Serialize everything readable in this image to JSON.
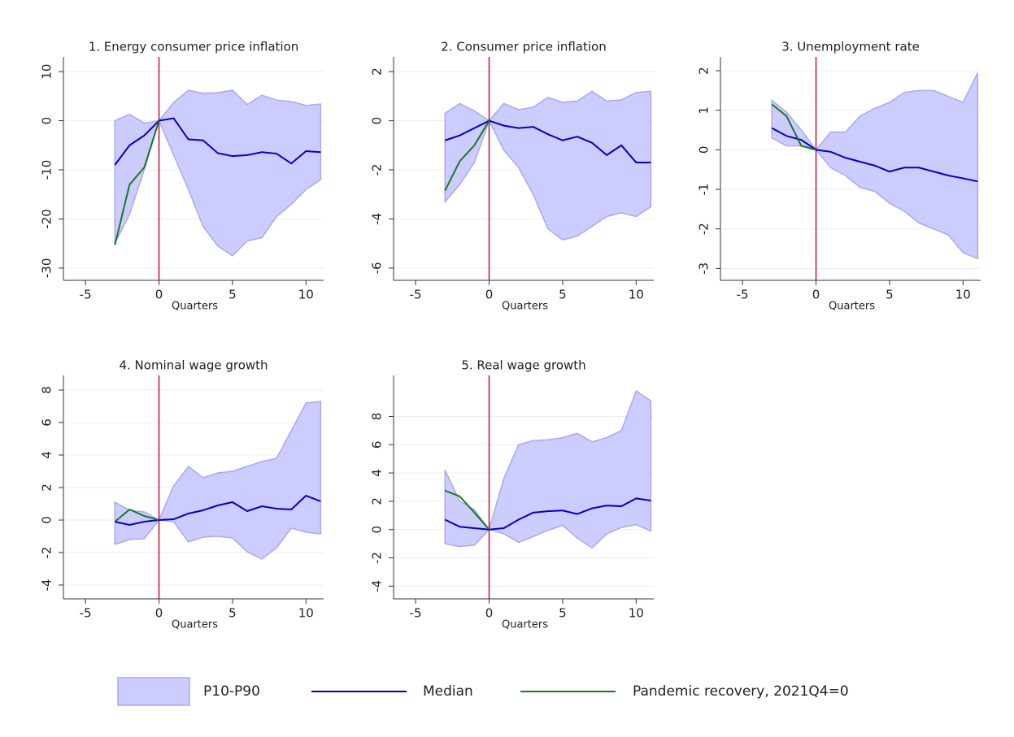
{
  "chart_data": [
    {
      "type": "line",
      "title": "1. Energy consumer price inflation",
      "xlabel": "Quarters",
      "x": [
        -3,
        -2,
        -1,
        0,
        1,
        2,
        3,
        4,
        5,
        6,
        7,
        8,
        9,
        10,
        11
      ],
      "xlim": [
        -6.5,
        11.2
      ],
      "xticks": [
        -5,
        0,
        5,
        10
      ],
      "ylim": [
        -32.5,
        13
      ],
      "yticks": [
        -30,
        -20,
        -10,
        0,
        10
      ],
      "grid": true,
      "vline": 0,
      "vline_color": "#c8103c",
      "series": [
        {
          "name": "P10-P90",
          "color": "#ccccff",
          "upper": [
            0,
            1.3,
            -0.5,
            0,
            3.7,
            6.2,
            5.6,
            5.7,
            6.2,
            3.3,
            5.2,
            4.2,
            3.9,
            3.1,
            3.4
          ],
          "lower": [
            -25,
            -19,
            -10,
            0,
            -7,
            -14,
            -21.5,
            -25.5,
            -27.5,
            -24.5,
            -23.8,
            -19.5,
            -17,
            -14,
            -12
          ]
        },
        {
          "name": "Median",
          "color": "#0000cc",
          "values": [
            -9,
            -5,
            -3,
            0,
            0.5,
            -3.8,
            -4,
            -6.6,
            -7.2,
            -7,
            -6.4,
            -6.7,
            -8.7,
            -6.2,
            -6.4
          ]
        },
        {
          "name": "Pandemic recovery, 2021Q4=0",
          "color": "#1a7a1a",
          "values": [
            -25.3,
            -13,
            -9.5,
            0,
            null,
            null,
            null,
            null,
            null,
            null,
            null,
            null,
            null,
            null,
            null
          ]
        }
      ]
    },
    {
      "type": "line",
      "title": "2. Consumer price inflation",
      "xlabel": "Quarters",
      "x": [
        -3,
        -2,
        -1,
        0,
        1,
        2,
        3,
        4,
        5,
        6,
        7,
        8,
        9,
        10,
        11
      ],
      "xlim": [
        -6.5,
        11.2
      ],
      "xticks": [
        -5,
        0,
        5,
        10
      ],
      "ylim": [
        -6.5,
        2.6
      ],
      "yticks": [
        -6,
        -4,
        -2,
        0,
        2
      ],
      "grid": true,
      "vline": 0,
      "vline_color": "#c8103c",
      "series": [
        {
          "name": "P10-P90",
          "color": "#ccccff",
          "upper": [
            0.3,
            0.7,
            0.4,
            0,
            0.7,
            0.45,
            0.55,
            0.95,
            0.75,
            0.8,
            1.2,
            0.8,
            0.85,
            1.15,
            1.2
          ],
          "lower": [
            -3.3,
            -2.6,
            -1.7,
            0,
            -1.2,
            -1.9,
            -3,
            -4.4,
            -4.85,
            -4.7,
            -4.3,
            -3.9,
            -3.75,
            -3.9,
            -3.5
          ]
        },
        {
          "name": "Median",
          "color": "#0000cc",
          "values": [
            -0.8,
            -0.6,
            -0.3,
            0,
            -0.2,
            -0.3,
            -0.25,
            -0.55,
            -0.8,
            -0.65,
            -0.9,
            -1.4,
            -1.0,
            -1.7,
            -1.7
          ]
        },
        {
          "name": "Pandemic recovery, 2021Q4=0",
          "color": "#1a7a1a",
          "values": [
            -2.85,
            -1.65,
            -1,
            0,
            null,
            null,
            null,
            null,
            null,
            null,
            null,
            null,
            null,
            null,
            null
          ]
        }
      ]
    },
    {
      "type": "line",
      "title": "3. Unemployment rate",
      "xlabel": "Quarters",
      "x": [
        -3,
        -2,
        -1,
        0,
        1,
        2,
        3,
        4,
        5,
        6,
        7,
        8,
        9,
        10,
        11
      ],
      "xlim": [
        -6.5,
        11.2
      ],
      "xticks": [
        -5,
        0,
        5,
        10
      ],
      "ylim": [
        -3.3,
        2.35
      ],
      "yticks": [
        -3,
        -2,
        -1,
        0,
        1,
        2
      ],
      "grid": true,
      "vline": 0,
      "vline_color": "#c8103c",
      "series": [
        {
          "name": "P10-P90",
          "color": "#ccccff",
          "upper": [
            1.25,
            0.95,
            0.5,
            0,
            0.45,
            0.45,
            0.85,
            1.05,
            1.2,
            1.45,
            1.5,
            1.5,
            1.35,
            1.2,
            1.95
          ],
          "lower": [
            0.3,
            0.1,
            0.1,
            0,
            -0.45,
            -0.65,
            -0.95,
            -1.05,
            -1.35,
            -1.55,
            -1.85,
            -2.0,
            -2.15,
            -2.6,
            -2.75
          ]
        },
        {
          "name": "Median",
          "color": "#0000cc",
          "values": [
            0.55,
            0.35,
            0.25,
            0,
            -0.05,
            -0.2,
            -0.3,
            -0.4,
            -0.55,
            -0.45,
            -0.45,
            -0.55,
            -0.65,
            -0.72,
            -0.8
          ]
        },
        {
          "name": "Pandemic recovery, 2021Q4=0",
          "color": "#1a7a1a",
          "values": [
            1.15,
            0.85,
            0.1,
            0,
            null,
            null,
            null,
            null,
            null,
            null,
            null,
            null,
            null,
            null,
            null
          ]
        }
      ]
    },
    {
      "type": "line",
      "title": "4. Nominal wage growth",
      "xlabel": "Quarters",
      "x": [
        -3,
        -2,
        -1,
        0,
        1,
        2,
        3,
        4,
        5,
        6,
        7,
        8,
        9,
        10,
        11
      ],
      "xlim": [
        -6.5,
        11.2
      ],
      "xticks": [
        -5,
        0,
        5,
        10
      ],
      "ylim": [
        -4.85,
        8.9
      ],
      "yticks": [
        -4,
        -2,
        0,
        2,
        4,
        6,
        8
      ],
      "grid": true,
      "vline": 0,
      "vline_color": "#c8103c",
      "series": [
        {
          "name": "P10-P90",
          "color": "#ccccff",
          "upper": [
            1.1,
            0.6,
            0.5,
            0,
            2.1,
            3.3,
            2.6,
            2.9,
            3.0,
            3.3,
            3.6,
            3.8,
            5.5,
            7.2,
            7.3
          ],
          "lower": [
            -1.5,
            -1.2,
            -1.15,
            0,
            -0.1,
            -1.35,
            -1.05,
            -1.0,
            -1.1,
            -1.95,
            -2.4,
            -1.7,
            -0.5,
            -0.75,
            -0.85
          ]
        },
        {
          "name": "Median",
          "color": "#0000cc",
          "values": [
            -0.1,
            -0.3,
            -0.1,
            0,
            0.05,
            0.4,
            0.6,
            0.9,
            1.1,
            0.55,
            0.85,
            0.7,
            0.65,
            1.5,
            1.15
          ]
        },
        {
          "name": "Pandemic recovery, 2021Q4=0",
          "color": "#1a7a1a",
          "values": [
            -0.1,
            0.65,
            0.25,
            0,
            null,
            null,
            null,
            null,
            null,
            null,
            null,
            null,
            null,
            null,
            null
          ]
        }
      ]
    },
    {
      "type": "line",
      "title": "5. Real wage growth",
      "xlabel": "Quarters",
      "x": [
        -3,
        -2,
        -1,
        0,
        1,
        2,
        3,
        4,
        5,
        6,
        7,
        8,
        9,
        10,
        11
      ],
      "xlim": [
        -6.5,
        11.2
      ],
      "xticks": [
        -5,
        0,
        5,
        10
      ],
      "ylim": [
        -4.9,
        10.9
      ],
      "yticks": [
        -4,
        -2,
        0,
        2,
        4,
        6,
        8
      ],
      "grid": true,
      "vline": 0,
      "vline_color": "#c8103c",
      "series": [
        {
          "name": "P10-P90",
          "color": "#ccccff",
          "upper": [
            4.2,
            2.0,
            1.4,
            0,
            3.6,
            6.0,
            6.3,
            6.35,
            6.5,
            6.8,
            6.2,
            6.5,
            7.0,
            9.8,
            9.1
          ],
          "lower": [
            -1,
            -1.2,
            -1.1,
            0,
            -0.3,
            -0.9,
            -0.5,
            -0.05,
            0.3,
            -0.6,
            -1.3,
            -0.3,
            0.15,
            0.35,
            -0.1
          ]
        },
        {
          "name": "Median",
          "color": "#0000cc",
          "values": [
            0.7,
            0.2,
            0.1,
            0,
            0.1,
            0.7,
            1.2,
            1.3,
            1.35,
            1.1,
            1.5,
            1.7,
            1.65,
            2.2,
            2.05
          ]
        },
        {
          "name": "Pandemic recovery, 2021Q4=0",
          "color": "#1a7a1a",
          "values": [
            2.75,
            2.35,
            1.2,
            0,
            null,
            null,
            null,
            null,
            null,
            null,
            null,
            null,
            null,
            null,
            null
          ]
        }
      ]
    }
  ]
}
